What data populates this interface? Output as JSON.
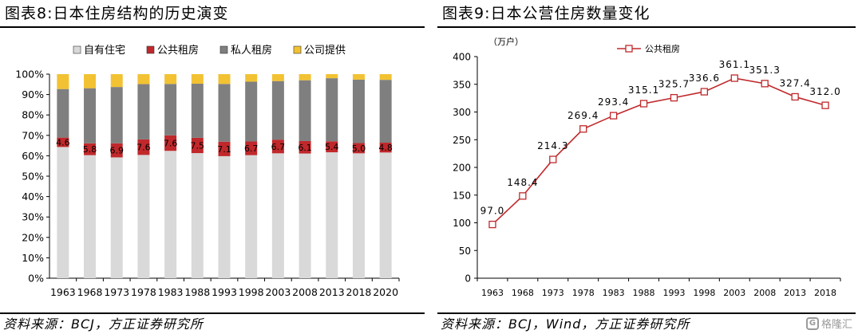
{
  "left_panel": {
    "title": "图表8:日本住房结构的历史演变",
    "source": "资料来源：BCJ，方正证券研究所"
  },
  "right_panel": {
    "title": "图表9:日本公营住房数量变化",
    "source": "资料来源：BCJ，Wind，方正证券研究所"
  },
  "watermark": {
    "icon": "gelonghui-logo-icon",
    "text": "格隆汇"
  },
  "colors": {
    "owner": "#d9d9d9",
    "public": "#c0282b",
    "private": "#7f7f7f",
    "corporate": "#f2c233",
    "line": "#c0282b"
  },
  "chart_data": [
    {
      "type": "bar",
      "stacked": true,
      "percent": true,
      "categories": [
        "1963",
        "1968",
        "1973",
        "1978",
        "1983",
        "1988",
        "1993",
        "1998",
        "2003",
        "2008",
        "2013",
        "2018",
        "2020"
      ],
      "series": [
        {
          "name": "自有住宅",
          "values": [
            64.3,
            60.3,
            59.2,
            60.4,
            62.4,
            61.3,
            59.8,
            60.3,
            61.2,
            61.1,
            61.7,
            61.2,
            61.6
          ]
        },
        {
          "name": "公共租房",
          "values": [
            4.6,
            5.8,
            6.9,
            7.6,
            7.6,
            7.5,
            7.1,
            6.7,
            6.7,
            6.1,
            5.4,
            5.0,
            4.8
          ]
        },
        {
          "name": "私人租房",
          "values": [
            23.8,
            27.0,
            27.6,
            27.1,
            25.2,
            26.5,
            28.3,
            29.3,
            28.7,
            29.8,
            30.9,
            31.1,
            30.8
          ]
        },
        {
          "name": "公司提供",
          "values": [
            7.3,
            6.9,
            6.3,
            4.9,
            4.8,
            4.7,
            4.8,
            3.7,
            3.4,
            3.0,
            2.0,
            2.7,
            2.8
          ]
        }
      ],
      "data_labels": [
        "4.6",
        "5.8",
        "6.9",
        "7.6",
        "7.6",
        "7.5",
        "7.1",
        "6.7",
        "6.7",
        "6.1",
        "5.4",
        "5.0",
        "4.8"
      ],
      "ylim": [
        0,
        100
      ],
      "yticks": [
        "0%",
        "10%",
        "20%",
        "30%",
        "40%",
        "50%",
        "60%",
        "70%",
        "80%",
        "90%",
        "100%"
      ],
      "legend": "top",
      "grid": false
    },
    {
      "type": "line",
      "unit": "（万户）",
      "x": [
        "1963",
        "1968",
        "1973",
        "1978",
        "1983",
        "1988",
        "1993",
        "1998",
        "2003",
        "2008",
        "2013",
        "2018"
      ],
      "series": [
        {
          "name": "公共租房",
          "values": [
            97.0,
            148.4,
            214.3,
            269.4,
            293.4,
            315.1,
            325.7,
            336.6,
            361.1,
            351.3,
            327.4,
            312.0
          ]
        }
      ],
      "data_labels": [
        "97.0",
        "148.4",
        "214.3",
        "269.4",
        "293.4",
        "315.1",
        "325.7",
        "336.6",
        "361.1",
        "351.3",
        "327.4",
        "312.0"
      ],
      "ylim": [
        0,
        400
      ],
      "yticks": [
        "0",
        "50",
        "100",
        "150",
        "200",
        "250",
        "300",
        "350",
        "400"
      ],
      "legend": "top-left",
      "grid": false,
      "marker": "square-open"
    }
  ]
}
